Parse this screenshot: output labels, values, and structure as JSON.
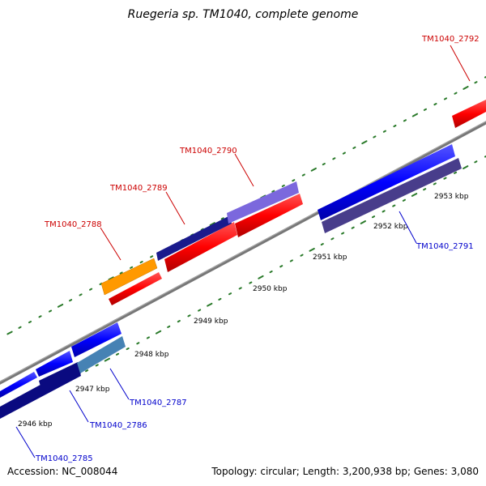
{
  "title": "Ruegeria sp. TM1040, complete genome",
  "footer": {
    "accession": "Accession: NC_008044",
    "summary": "Topology: circular; Length: 3,200,938 bp; Genes: 3,080"
  },
  "colors": {
    "backbone": "#888888",
    "tick": "#2a7a2a",
    "label_red": "#cc0000",
    "label_blue": "#0000cc"
  },
  "ticks": {
    "labels": [
      {
        "kbp": 2946,
        "text": "2946 kbp"
      },
      {
        "kbp": 2947,
        "text": "2947 kbp"
      },
      {
        "kbp": 2948,
        "text": "2948 kbp"
      },
      {
        "kbp": 2949,
        "text": "2949 kbp"
      },
      {
        "kbp": 2950,
        "text": "2950 kbp"
      },
      {
        "kbp": 2951,
        "text": "2951 kbp"
      },
      {
        "kbp": 2952,
        "text": "2952 kbp"
      },
      {
        "kbp": 2953,
        "text": "2953 kbp"
      }
    ]
  },
  "genes": [
    {
      "id": "g2788",
      "label": "TM1040_2788",
      "strand": "+",
      "color": "#ff9900"
    },
    {
      "id": "g2789",
      "label": "TM1040_2789",
      "strand": "+",
      "color": "#1a1a8c"
    },
    {
      "id": "g2790",
      "label": "TM1040_2790",
      "strand": "+",
      "color": "#7b68dd"
    },
    {
      "id": "g2792",
      "label": "TM1040_2792",
      "strand": "+",
      "color": "#ff0000"
    },
    {
      "id": "g2785",
      "label": "TM1040_2785",
      "strand": "-",
      "color": "#0a0a80"
    },
    {
      "id": "g2786",
      "label": "TM1040_2786",
      "strand": "-",
      "color": "#0a0a80"
    },
    {
      "id": "g2787",
      "label": "TM1040_2787",
      "strand": "-",
      "color": "#4682b4"
    },
    {
      "id": "g2791",
      "label": "TM1040_2791",
      "strand": "-",
      "color": "#483d8b"
    }
  ]
}
